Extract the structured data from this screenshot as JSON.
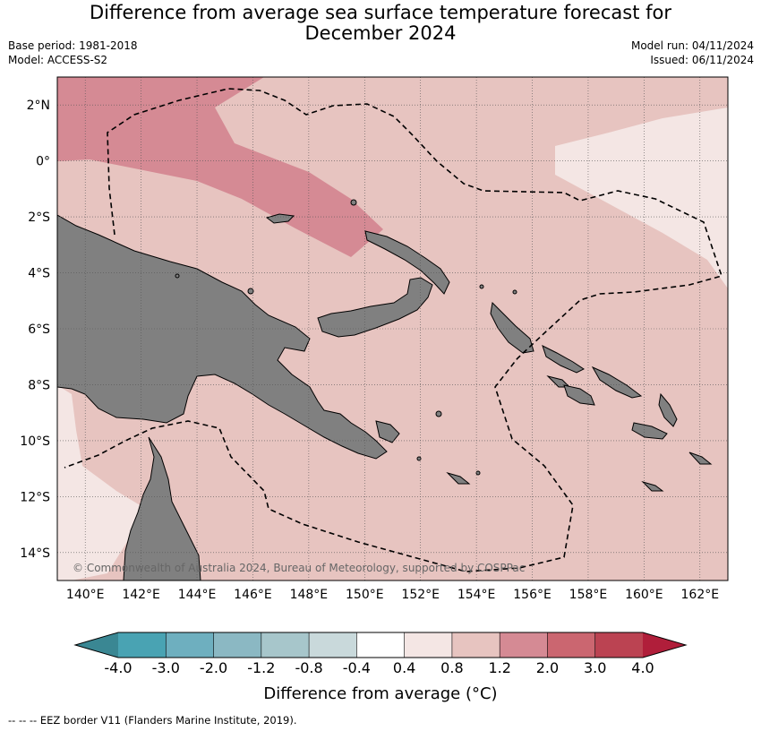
{
  "title": {
    "line1": "Difference from average sea surface temperature forecast for",
    "line2": "December 2024"
  },
  "meta": {
    "base_period": "Base period: 1981-2018",
    "model": "Model: ACCESS-S2",
    "model_run": "Model run: 04/11/2024",
    "issued": "Issued: 06/11/2024"
  },
  "map": {
    "lon_range": [
      139,
      163
    ],
    "lat_range": [
      -15,
      3
    ],
    "lon_ticks": [
      {
        "value": 140,
        "label": "140°E"
      },
      {
        "value": 142,
        "label": "142°E"
      },
      {
        "value": 144,
        "label": "144°E"
      },
      {
        "value": 146,
        "label": "146°E"
      },
      {
        "value": 148,
        "label": "148°E"
      },
      {
        "value": 150,
        "label": "150°E"
      },
      {
        "value": 152,
        "label": "152°E"
      },
      {
        "value": 154,
        "label": "154°E"
      },
      {
        "value": 156,
        "label": "156°E"
      },
      {
        "value": 158,
        "label": "158°E"
      },
      {
        "value": 160,
        "label": "160°E"
      },
      {
        "value": 162,
        "label": "162°E"
      }
    ],
    "lat_ticks": [
      {
        "value": 2,
        "label": "2°N"
      },
      {
        "value": 0,
        "label": "0°"
      },
      {
        "value": -2,
        "label": "2°S"
      },
      {
        "value": -4,
        "label": "4°S"
      },
      {
        "value": -6,
        "label": "6°S"
      },
      {
        "value": -8,
        "label": "8°S"
      },
      {
        "value": -10,
        "label": "10°S"
      },
      {
        "value": -12,
        "label": "12°S"
      },
      {
        "value": -14,
        "label": "14°S"
      }
    ],
    "copyright": "© Commonwealth of Australia 2024, Bureau of Meteorology, supported by COSPPac",
    "colors": {
      "land": "#808080",
      "band_0p4_0p8": "#f4e6e4",
      "band_0p8_1p2": "#e7c4c0",
      "band_1p2_2p0": "#d58a94"
    }
  },
  "colorbar": {
    "ticks": [
      "-4.0",
      "-3.0",
      "-2.0",
      "-1.2",
      "-0.8",
      "-0.4",
      "0.4",
      "0.8",
      "1.2",
      "2.0",
      "3.0",
      "4.0"
    ],
    "colors": [
      "#3a8793",
      "#49a3b3",
      "#6eafbf",
      "#8bb8c3",
      "#a7c6cb",
      "#c9d9db",
      "#ffffff",
      "#f4e6e4",
      "#e7c4c0",
      "#d58a94",
      "#cb6670",
      "#bb4352",
      "#b01e3a"
    ],
    "title": "Difference from average (°C)"
  },
  "footer": "-- -- -- EEZ border V11 (Flanders Marine Institute, 2019)."
}
